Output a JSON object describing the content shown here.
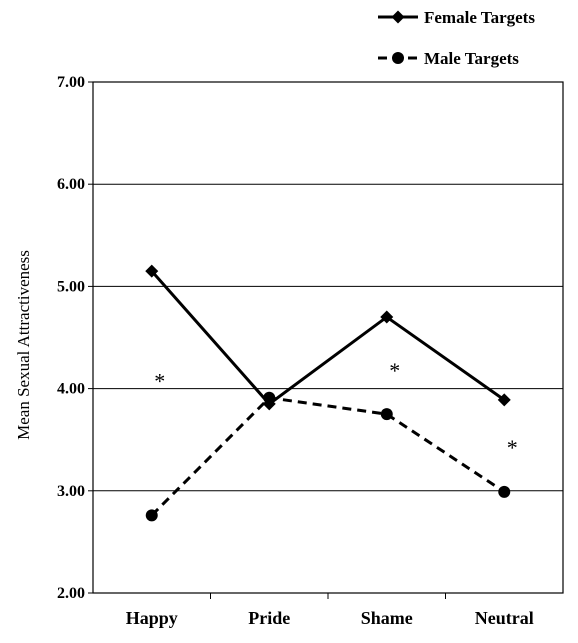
{
  "chart_data": {
    "type": "line",
    "title": "",
    "xlabel": "",
    "ylabel": "Mean Sexual Attractiveness",
    "categories": [
      "Happy",
      "Pride",
      "Shame",
      "Neutral"
    ],
    "ylim": [
      2.0,
      7.0
    ],
    "yticks": [
      "2.00",
      "3.00",
      "4.00",
      "5.00",
      "6.00",
      "7.00"
    ],
    "grid": "horizontal",
    "legend_position": "top-right",
    "series": [
      {
        "name": "Female Targets",
        "values": [
          5.15,
          3.85,
          4.7,
          3.89
        ],
        "marker": "diamond",
        "line": "solid",
        "color": "#000000"
      },
      {
        "name": "Male Targets",
        "values": [
          2.76,
          3.91,
          3.75,
          2.99
        ],
        "marker": "circle",
        "line": "dashed",
        "color": "#000000"
      }
    ],
    "annotations": [
      {
        "text": "*",
        "category": "Happy",
        "y": 4.1
      },
      {
        "text": "*",
        "category": "Shame",
        "y": 4.2
      },
      {
        "text": "*",
        "category": "Neutral",
        "y": 3.45
      }
    ]
  }
}
